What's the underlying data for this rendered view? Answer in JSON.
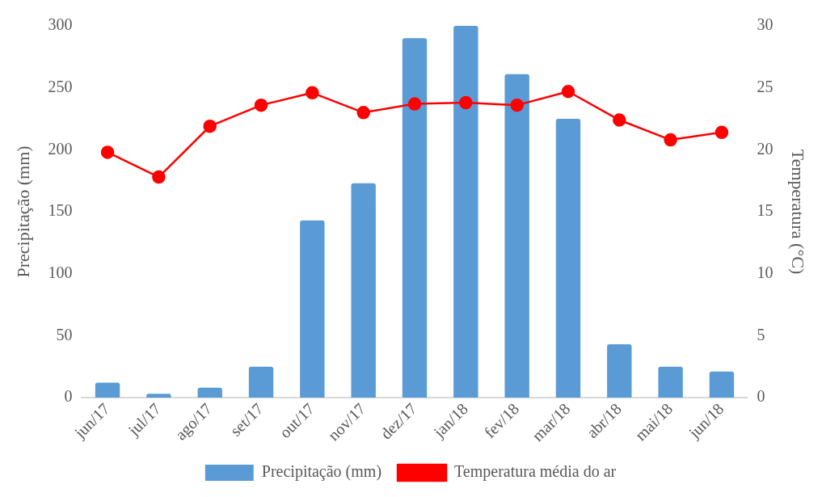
{
  "chart_data": {
    "type": "bar",
    "ylabel": "Precipitação (mm)",
    "y2label": "Temperatura (°C)",
    "categories": [
      "jun/17",
      "jul/17",
      "ago/17",
      "set/17",
      "out/17",
      "nov/17",
      "dez/17",
      "jan/18",
      "fev/18",
      "mar/18",
      "abr/18",
      "mai/18",
      "jun/18"
    ],
    "series": [
      {
        "name": "Precipitação (mm)",
        "color": "#5b9bd5",
        "values": [
          12,
          3,
          8,
          25,
          143,
          173,
          290,
          300,
          261,
          225,
          43,
          25,
          21
        ]
      },
      {
        "name": "Temperatura média do ar",
        "type": "line",
        "axis": "y2",
        "color": "#ff0000",
        "marker": "circle",
        "values": [
          19.8,
          17.8,
          21.9,
          23.6,
          24.6,
          23.0,
          23.7,
          23.8,
          23.6,
          24.7,
          22.4,
          20.8,
          21.4
        ]
      }
    ],
    "ylim": [
      0,
      300
    ],
    "yticks": [
      0,
      50,
      100,
      150,
      200,
      250,
      300
    ],
    "y2lim": [
      0,
      30
    ],
    "y2ticks": [
      0,
      5,
      10,
      15,
      20,
      25,
      30
    ],
    "grid": false,
    "legend": "bottom"
  }
}
